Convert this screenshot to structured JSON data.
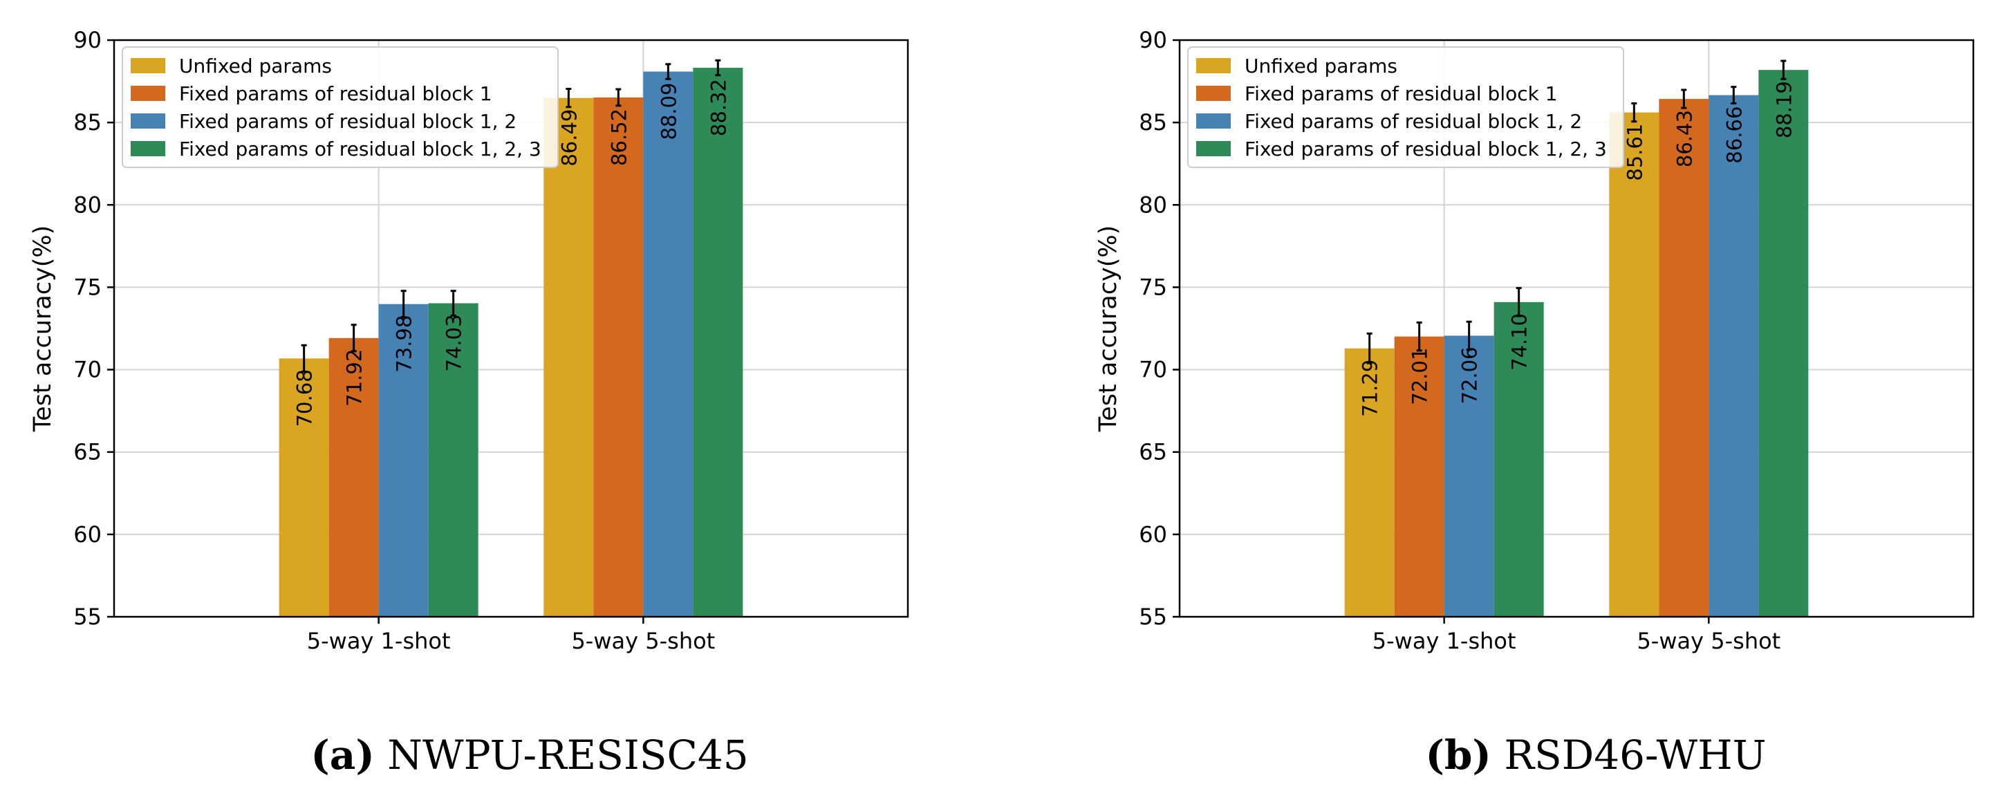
{
  "series_colors": [
    "#DAA520",
    "#D2691E",
    "#4682B4",
    "#2E8B57"
  ],
  "chart_data": [
    {
      "type": "bar",
      "categories": [
        "5-way 1-shot",
        "5-way 5-shot"
      ],
      "series": [
        {
          "name": "Unfixed params",
          "values": [
            70.68,
            86.49
          ],
          "errors": [
            0.8,
            0.55
          ]
        },
        {
          "name": "Fixed params of residual block 1",
          "values": [
            71.92,
            86.52
          ],
          "errors": [
            0.8,
            0.5
          ]
        },
        {
          "name": "Fixed params of residual block 1, 2",
          "values": [
            73.98,
            88.09
          ],
          "errors": [
            0.8,
            0.45
          ]
        },
        {
          "name": "Fixed params of residual block 1, 2, 3",
          "values": [
            74.03,
            88.32
          ],
          "errors": [
            0.75,
            0.45
          ]
        }
      ],
      "value_labels": [
        [
          "70.68",
          "86.49"
        ],
        [
          "71.92",
          "86.52"
        ],
        [
          "73.98",
          "88.09"
        ],
        [
          "74.03",
          "88.32"
        ]
      ],
      "ylabel": "Test accuracy(%)",
      "xlabel": "",
      "ylim": [
        55,
        90
      ],
      "yticks": [
        55,
        60,
        65,
        70,
        75,
        80,
        85,
        90
      ],
      "grid": true,
      "legend_position": "top-left",
      "caption_letter": "(a)",
      "caption_text": "NWPU-RESISC45"
    },
    {
      "type": "bar",
      "categories": [
        "5-way 1-shot",
        "5-way 5-shot"
      ],
      "series": [
        {
          "name": "Unfixed params",
          "values": [
            71.29,
            85.61
          ],
          "errors": [
            0.9,
            0.55
          ]
        },
        {
          "name": "Fixed params of residual block 1",
          "values": [
            72.01,
            86.43
          ],
          "errors": [
            0.85,
            0.55
          ]
        },
        {
          "name": "Fixed params of residual block 1, 2",
          "values": [
            72.06,
            86.66
          ],
          "errors": [
            0.85,
            0.5
          ]
        },
        {
          "name": "Fixed params of residual block 1, 2, 3",
          "values": [
            74.1,
            88.19
          ],
          "errors": [
            0.85,
            0.55
          ]
        }
      ],
      "value_labels": [
        [
          "71.29",
          "85.61"
        ],
        [
          "72.01",
          "86.43"
        ],
        [
          "72.06",
          "86.66"
        ],
        [
          "74.10",
          "88.19"
        ]
      ],
      "ylabel": "Test accuracy(%)",
      "xlabel": "",
      "ylim": [
        55,
        90
      ],
      "yticks": [
        55,
        60,
        65,
        70,
        75,
        80,
        85,
        90
      ],
      "grid": true,
      "legend_position": "top-left",
      "caption_letter": "(b)",
      "caption_text": "RSD46-WHU"
    }
  ]
}
